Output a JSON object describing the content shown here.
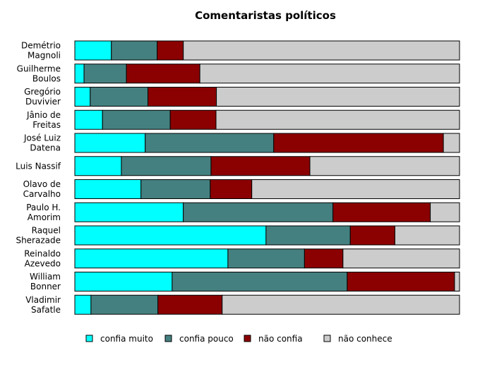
{
  "chart_data": {
    "type": "bar",
    "orientation": "horizontal",
    "stacked": true,
    "normalized": true,
    "title": "Comentaristas políticos",
    "xlabel": "",
    "ylabel": "",
    "xlim": [
      0,
      100
    ],
    "grid": false,
    "legend_position": "bottom",
    "categories": [
      [
        "Demétrio",
        "Magnoli"
      ],
      [
        "Guilherme",
        "Boulos"
      ],
      [
        "Gregório",
        "Duvivier"
      ],
      [
        "Jânio de",
        "Freitas"
      ],
      [
        "José Luiz",
        "Datena"
      ],
      [
        "Luis Nassif"
      ],
      [
        "Olavo de",
        "Carvalho"
      ],
      [
        "Paulo H.",
        "Amorim"
      ],
      [
        "Raquel",
        "Sherazade"
      ],
      [
        "Reinaldo",
        "Azevedo"
      ],
      [
        "William",
        "Bonner"
      ],
      [
        "Vladimir",
        "Safatle"
      ]
    ],
    "series": [
      {
        "name": "confia muito",
        "color": "#00ffff",
        "values": [
          9.5,
          2.4,
          4.0,
          7.2,
          18.3,
          12.1,
          17.2,
          28.2,
          49.7,
          39.8,
          25.3,
          4.2
        ]
      },
      {
        "name": "confia pouco",
        "color": "#458080",
        "values": [
          11.9,
          11.0,
          15.0,
          17.6,
          33.4,
          23.3,
          18.0,
          38.9,
          21.9,
          19.9,
          45.5,
          17.4
        ]
      },
      {
        "name": "não confia",
        "color": "#8b0000",
        "values": [
          6.8,
          19.1,
          17.8,
          11.9,
          44.1,
          25.7,
          10.8,
          25.3,
          11.6,
          10.0,
          27.9,
          16.7
        ]
      },
      {
        "name": "não conhece",
        "color": "#cccccc",
        "values": [
          71.8,
          67.5,
          63.2,
          63.3,
          4.2,
          38.9,
          54.0,
          7.6,
          16.8,
          30.3,
          1.3,
          61.7
        ]
      }
    ]
  }
}
